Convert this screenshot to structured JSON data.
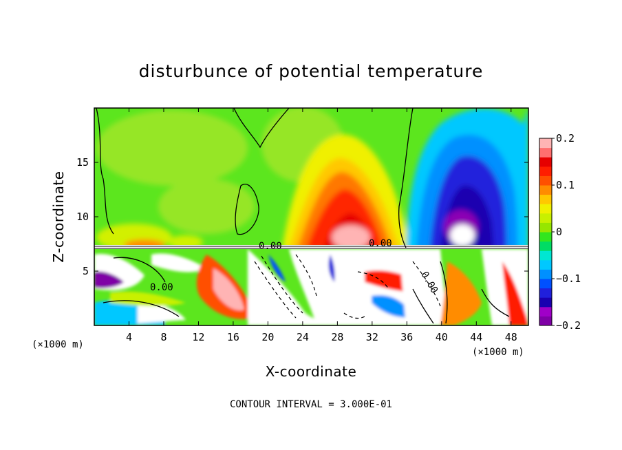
{
  "chart_data": {
    "type": "heatmap",
    "title": "disturbunce of potential temperature",
    "xlabel": "X-coordinate",
    "ylabel": "Z-coordinate",
    "x_unit_left": "(×1000 m)",
    "x_unit_right": "(×1000 m)",
    "xlim": [
      0,
      50
    ],
    "ylim": [
      0,
      20
    ],
    "x_ticks": [
      4,
      8,
      12,
      16,
      20,
      24,
      28,
      32,
      36,
      40,
      44,
      48
    ],
    "y_ticks": [
      5,
      10,
      15
    ],
    "colorbar": {
      "vmin": -0.2,
      "vmax": 0.2,
      "ticks": [
        0.2,
        0.1,
        0,
        -0.1,
        -0.2
      ],
      "tick_labels": [
        "0.2",
        "0.1",
        "0",
        "−0.1",
        "−0.2"
      ],
      "colors": [
        "#7f00a6",
        "#a000c8",
        "#1a00b0",
        "#2020dc",
        "#0050ff",
        "#0090ff",
        "#00c8ff",
        "#00e6d2",
        "#00dc64",
        "#32e61e",
        "#96e600",
        "#c8f000",
        "#f0f000",
        "#ffc800",
        "#ff8c00",
        "#ff5000",
        "#ff1e00",
        "#e60000",
        "#ff6e6e",
        "#ffb4b4"
      ]
    },
    "contour_labels": [
      "0.00",
      "0.00",
      "0.00",
      "0.00"
    ],
    "annotation": "CONTOUR INTERVAL = 3.000E-01"
  }
}
